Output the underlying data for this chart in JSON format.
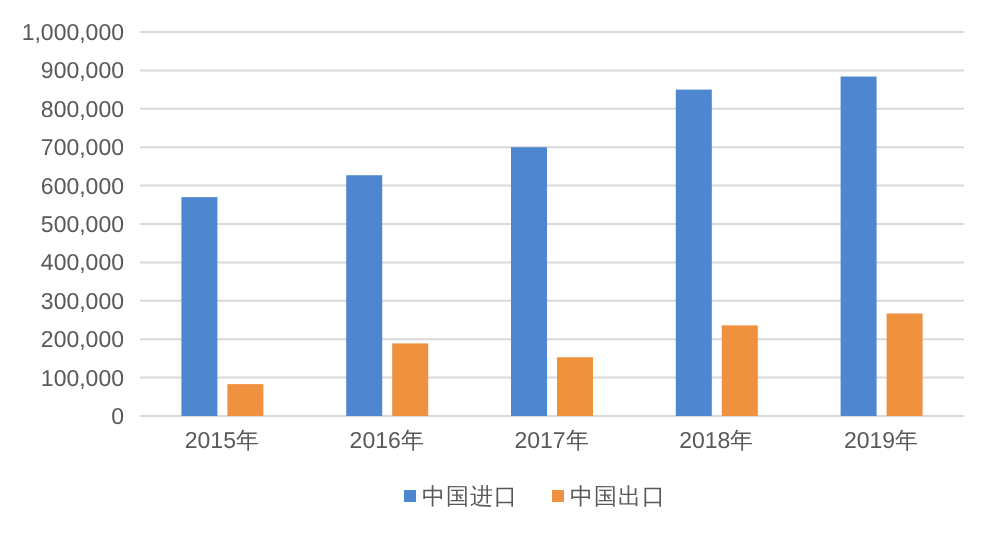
{
  "chart_data": {
    "type": "bar",
    "categories": [
      "2015年",
      "2016年",
      "2017年",
      "2018年",
      "2019年"
    ],
    "series": [
      {
        "name": "中国进口",
        "color": "#4f86d0",
        "values": [
          570000,
          627000,
          700000,
          850000,
          884000
        ]
      },
      {
        "name": "中国出口",
        "color": "#f0913f",
        "values": [
          83000,
          189000,
          153000,
          236000,
          267000
        ]
      }
    ],
    "ylim": [
      0,
      1000000
    ],
    "yticks": [
      {
        "value": 0,
        "label": "0"
      },
      {
        "value": 100000,
        "label": "100,000"
      },
      {
        "value": 200000,
        "label": "200,000"
      },
      {
        "value": 300000,
        "label": "300,000"
      },
      {
        "value": 400000,
        "label": "400,000"
      },
      {
        "value": 500000,
        "label": "500,000"
      },
      {
        "value": 600000,
        "label": "600,000"
      },
      {
        "value": 700000,
        "label": "700,000"
      },
      {
        "value": 800000,
        "label": "800,000"
      },
      {
        "value": 900000,
        "label": "900,000"
      },
      {
        "value": 1000000,
        "label": "1,000,000"
      }
    ],
    "grid": "y",
    "legend": "bottom"
  }
}
